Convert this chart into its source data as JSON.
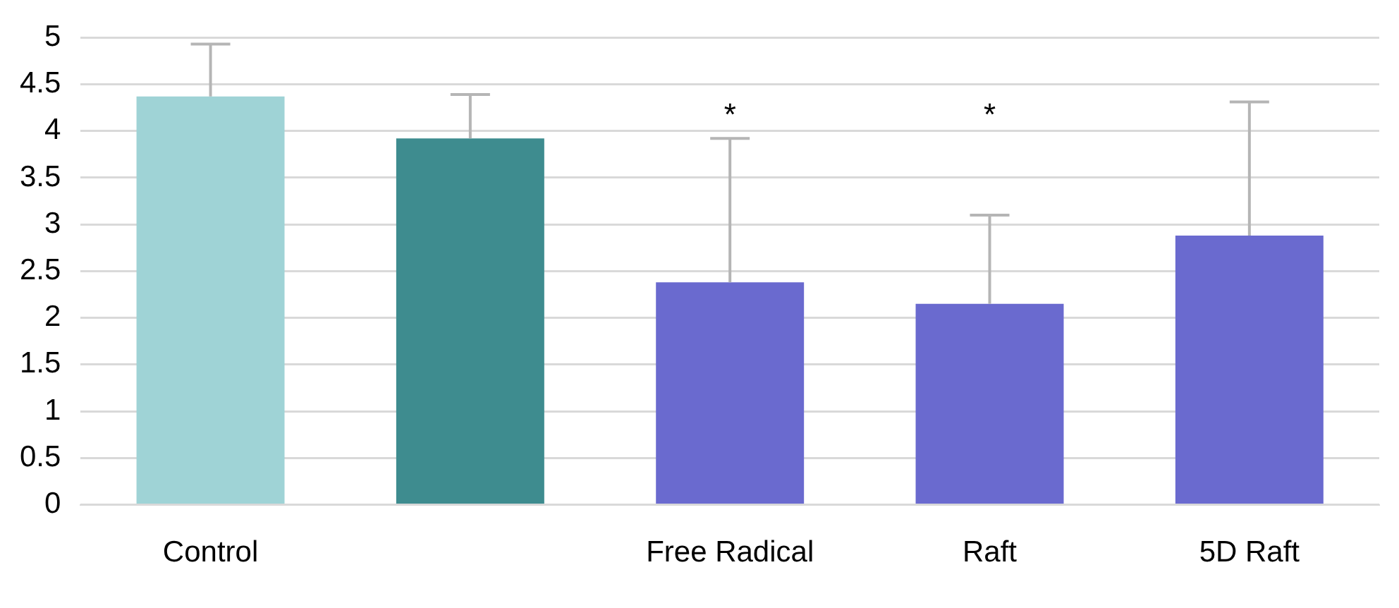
{
  "chart_data": {
    "type": "bar",
    "categories": [
      "Control",
      null,
      "Free Radical",
      "Raft",
      "5D Raft"
    ],
    "values": [
      4.37,
      3.92,
      2.38,
      2.15,
      2.88
    ],
    "colors": [
      "#9fd3d6",
      "#3e8c8f",
      "#6a6acf",
      "#6a6acf",
      "#6a6acf"
    ],
    "errors": [
      [
        4.37,
        4.93
      ],
      [
        3.92,
        4.39
      ],
      [
        2.38,
        3.92
      ],
      [
        2.15,
        3.1
      ],
      [
        2.88,
        4.31
      ]
    ],
    "ylim": [
      0,
      5
    ],
    "yticks": [
      0,
      0.5,
      1,
      1.5,
      2,
      2.5,
      3,
      3.5,
      4,
      4.5,
      5
    ],
    "grid": "y",
    "legend": false,
    "annotations": [
      "*",
      "*"
    ]
  }
}
